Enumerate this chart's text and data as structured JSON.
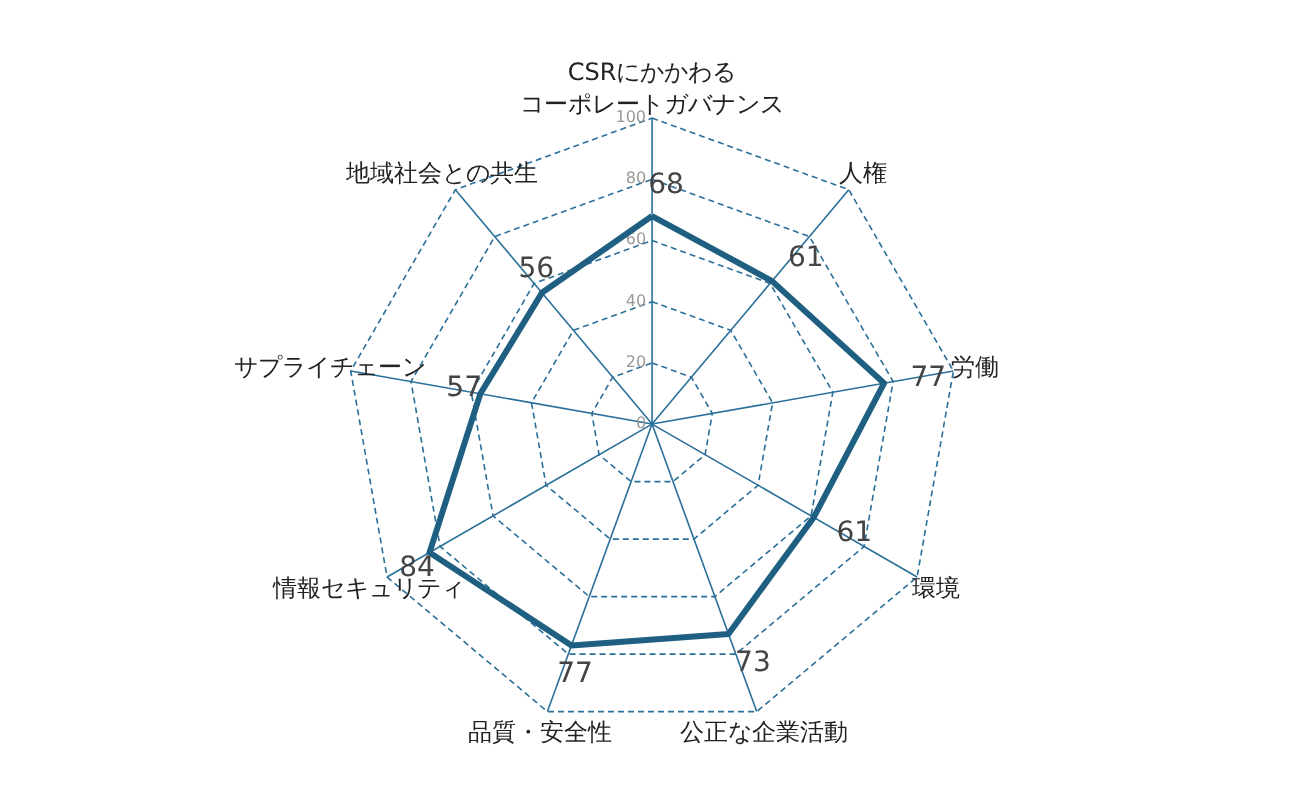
{
  "chart_data": {
    "type": "radar",
    "categories": [
      "CSRにかかわるコーポレートガバナンス",
      "人権",
      "労働",
      "環境",
      "公正な企業活動",
      "品質・安全性",
      "情報セキュリティ",
      "サプライチェーン",
      "地域社会との共生"
    ],
    "series": [
      {
        "color": "#1f5f82",
        "values": [
          68,
          61,
          77,
          61,
          73,
          77,
          84,
          57,
          56
        ]
      }
    ],
    "ylim": [
      0,
      100
    ],
    "yticks": [
      0,
      20,
      40,
      60,
      80,
      100
    ],
    "grid": true,
    "data_labels": true
  }
}
